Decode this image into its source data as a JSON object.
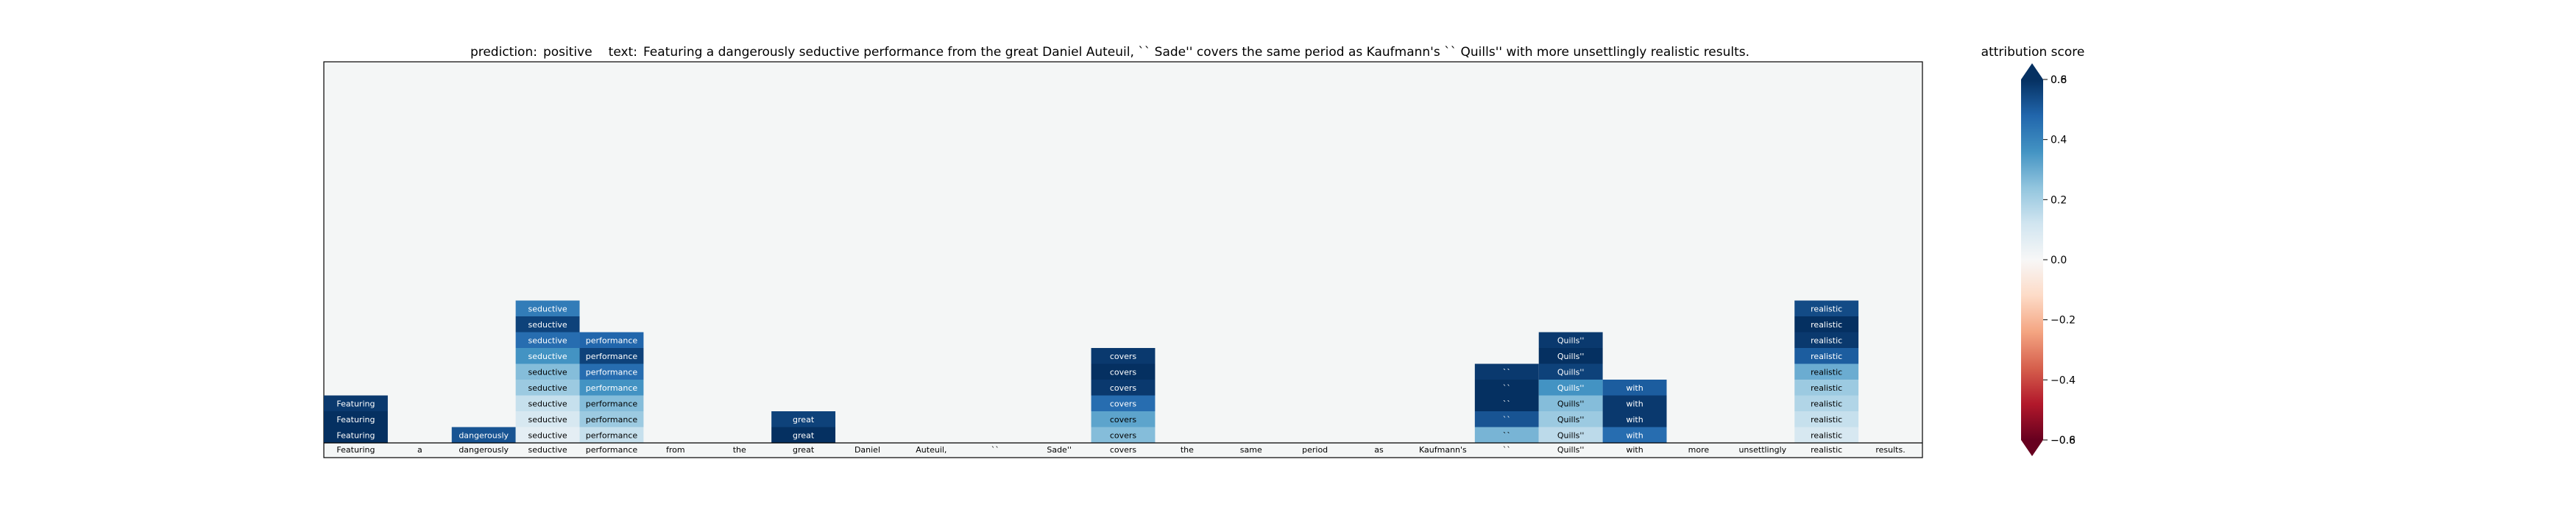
{
  "title": {
    "prediction_label": "prediction:",
    "prediction": "positive",
    "text_label": "text:",
    "text": "Featuring a dangerously seductive performance from the great Daniel Auteuil, `` Sade'' covers the same period as Kaufmann's `` Quills'' with more unsettlingly realistic results."
  },
  "colorbar": {
    "label": "attribution score",
    "ticks": [
      "−0.6",
      "−0.4",
      "−0.2",
      "0.0",
      "0.2",
      "0.4",
      "0.6"
    ],
    "tick_values": [
      -0.6,
      -0.4,
      -0.2,
      0.0,
      0.2,
      0.4,
      0.6
    ],
    "range": [
      -0.6,
      0.6
    ],
    "colormap": "RdBu",
    "extend": "both",
    "overlap_label_low": "−0.8",
    "overlap_label_high": "0.8"
  },
  "colors": {
    "background": "#f4f6f6",
    "frame": "#000000",
    "light_text": "#ffffff",
    "dark_text": "#000000"
  },
  "chart_data": {
    "type": "heatmap",
    "tokens": [
      "Featuring",
      "a",
      "dangerously",
      "seductive",
      "performance",
      "from",
      "the",
      "great",
      "Daniel",
      "Auteuil,",
      "``",
      "Sade''",
      "covers",
      "the",
      "same",
      "period",
      "as",
      "Kaufmann's",
      "``",
      "Quills''",
      "with",
      "more",
      "unsettlingly",
      "realistic",
      "results."
    ],
    "levels_note": "each column lists the attribution score of the token at each stacked level, bottom level first",
    "columns": [
      {
        "token_index": 0,
        "scores": [
          0.62,
          0.78,
          0.58
        ]
      },
      {
        "token_index": 2,
        "scores": [
          0.52
        ]
      },
      {
        "token_index": 3,
        "scores": [
          0.06,
          0.1,
          0.14,
          0.22,
          0.26,
          0.36,
          0.46,
          0.56,
          0.42
        ]
      },
      {
        "token_index": 4,
        "scores": [
          0.14,
          0.22,
          0.26,
          0.36,
          0.46,
          0.56,
          0.48
        ]
      },
      {
        "token_index": 7,
        "scores": [
          0.74,
          0.56
        ]
      },
      {
        "token_index": 12,
        "scores": [
          0.26,
          0.32,
          0.46,
          0.58,
          0.74,
          0.58
        ]
      },
      {
        "token_index": 18,
        "scores": [
          0.28,
          0.52,
          0.74,
          0.74,
          0.58
        ]
      },
      {
        "token_index": 19,
        "scores": [
          0.16,
          0.22,
          0.26,
          0.36,
          0.56,
          0.74,
          0.58
        ]
      },
      {
        "token_index": 20,
        "scores": [
          0.46,
          0.58,
          0.58,
          0.5
        ]
      },
      {
        "token_index": 23,
        "scores": [
          0.1,
          0.14,
          0.18,
          0.22,
          0.3,
          0.5,
          0.58,
          0.78,
          0.54
        ]
      }
    ],
    "colorbar_range": [
      -0.6,
      0.6
    ]
  }
}
